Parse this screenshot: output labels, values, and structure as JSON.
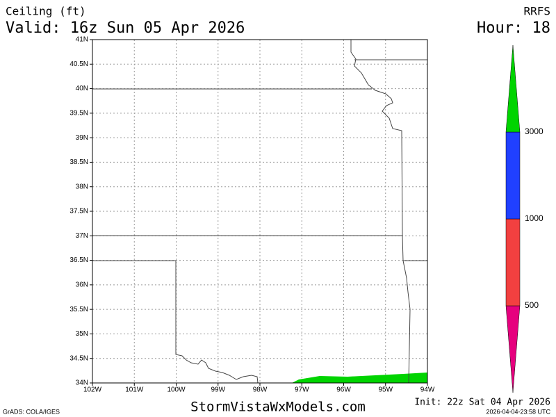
{
  "header": {
    "title": "Ceiling (ft)",
    "valid": "Valid: 16z Sun 05 Apr 2026",
    "model": "RRFS",
    "hour": "Hour: 18"
  },
  "map": {
    "lat_ticks": [
      {
        "value": 41,
        "label": "41N"
      },
      {
        "value": 40.5,
        "label": "40.5N"
      },
      {
        "value": 40,
        "label": "40N"
      },
      {
        "value": 39.5,
        "label": "39.5N"
      },
      {
        "value": 39,
        "label": "39N"
      },
      {
        "value": 38.5,
        "label": "38.5N"
      },
      {
        "value": 38,
        "label": "38N"
      },
      {
        "value": 37.5,
        "label": "37.5N"
      },
      {
        "value": 37,
        "label": "37N"
      },
      {
        "value": 36.5,
        "label": "36.5N"
      },
      {
        "value": 36,
        "label": "36N"
      },
      {
        "value": 35.5,
        "label": "35.5N"
      },
      {
        "value": 35,
        "label": "35N"
      },
      {
        "value": 34.5,
        "label": "34.5N"
      },
      {
        "value": 34,
        "label": "34N"
      }
    ],
    "lon_ticks": [
      {
        "value": -102,
        "label": "102W"
      },
      {
        "value": -101,
        "label": "101W"
      },
      {
        "value": -100,
        "label": "100W"
      },
      {
        "value": -99,
        "label": "99W"
      },
      {
        "value": -98,
        "label": "98W"
      },
      {
        "value": -97,
        "label": "97W"
      },
      {
        "value": -96,
        "label": "96W"
      },
      {
        "value": -95,
        "label": "95W"
      },
      {
        "value": -94,
        "label": "94W"
      }
    ]
  },
  "colorbar": {
    "levels": [
      500,
      1000,
      3000
    ],
    "colors": [
      "#e6007e",
      "#f24040",
      "#2040ff",
      "#00d400"
    ]
  },
  "footer": {
    "credit": "GrADS: COLA/IGES",
    "site": "StormVistaWxModels.com",
    "init": "Init: 22z Sat 04 Apr 2026",
    "stamp": "2026-04-04-23:58 UTC"
  }
}
